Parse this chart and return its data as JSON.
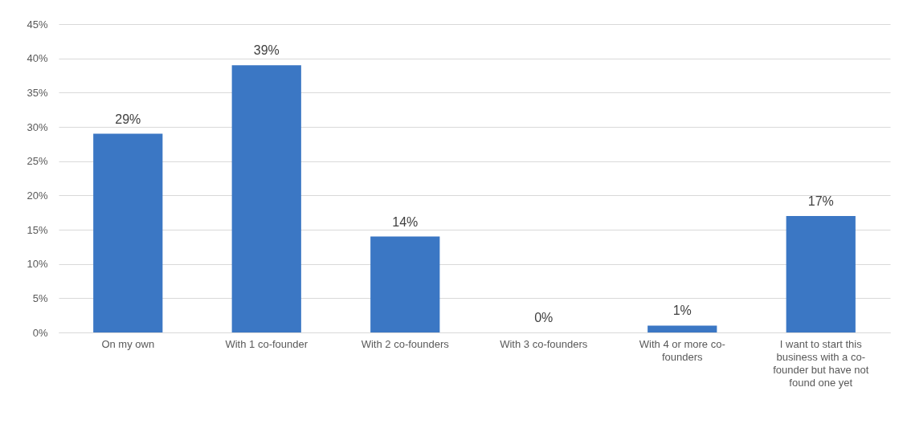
{
  "chart_data": {
    "type": "bar",
    "categories": [
      "On my own",
      "With 1 co-founder",
      "With 2 co-founders",
      "With 3 co-founders",
      "With 4 or more co-founders",
      "I want to start this business with a co-founder but have not found one yet"
    ],
    "values": [
      29,
      39,
      14,
      0,
      1,
      17
    ],
    "value_labels": [
      "29%",
      "39%",
      "14%",
      "0%",
      "1%",
      "17%"
    ],
    "color": "#3b77c4",
    "ylim": [
      0,
      45
    ],
    "yticks": [
      {
        "value": 0,
        "label": "0%"
      },
      {
        "value": 5,
        "label": "5%"
      },
      {
        "value": 10,
        "label": "10%"
      },
      {
        "value": 15,
        "label": "15%"
      },
      {
        "value": 20,
        "label": "20%"
      },
      {
        "value": 25,
        "label": "25%"
      },
      {
        "value": 30,
        "label": "30%"
      },
      {
        "value": 35,
        "label": "35%"
      },
      {
        "value": 40,
        "label": "40%"
      },
      {
        "value": 45,
        "label": "45%"
      }
    ],
    "grid": "y"
  }
}
